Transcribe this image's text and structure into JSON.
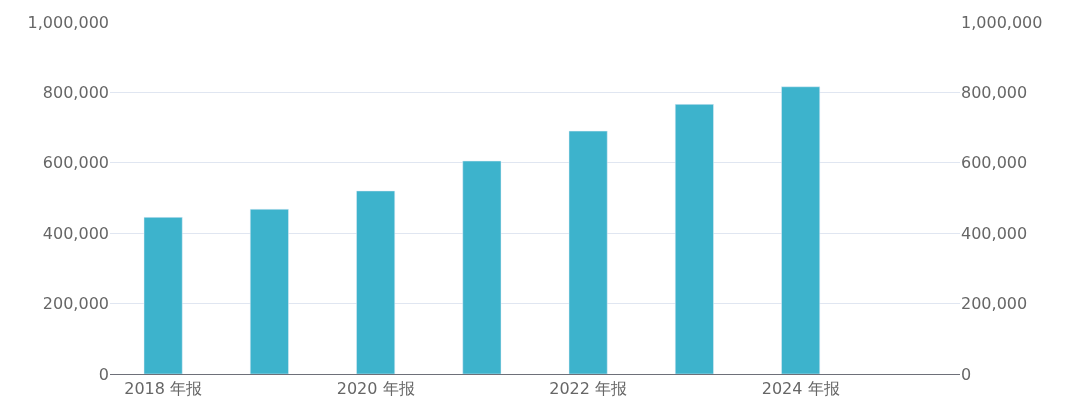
{
  "chart_data": {
    "type": "bar",
    "categories": [
      "2018 年报",
      null,
      "2020 年报",
      null,
      "2022 年报",
      null,
      "2024 年报",
      null
    ],
    "values": [
      445000,
      468000,
      520000,
      605000,
      690000,
      766000,
      816000,
      null
    ],
    "color": "#3db3cc",
    "ylim": [
      0,
      1000000
    ],
    "yticks": [
      {
        "value": 0,
        "label": "0"
      },
      {
        "value": 200000,
        "label": "200,000"
      },
      {
        "value": 400000,
        "label": "400,000"
      },
      {
        "value": 600000,
        "label": "600,000"
      },
      {
        "value": 800000,
        "label": "800,000"
      },
      {
        "value": 1000000,
        "label": "1,000,000"
      }
    ],
    "y2lim": [
      0,
      1000000
    ],
    "y2ticks": [
      {
        "value": 0,
        "label": "0"
      },
      {
        "value": 200000,
        "label": "200,000"
      },
      {
        "value": 400000,
        "label": "400,000"
      },
      {
        "value": 600000,
        "label": "600,000"
      },
      {
        "value": 800000,
        "label": "800,000"
      },
      {
        "value": 1000000,
        "label": "1,000,000"
      }
    ],
    "grid": "y"
  }
}
